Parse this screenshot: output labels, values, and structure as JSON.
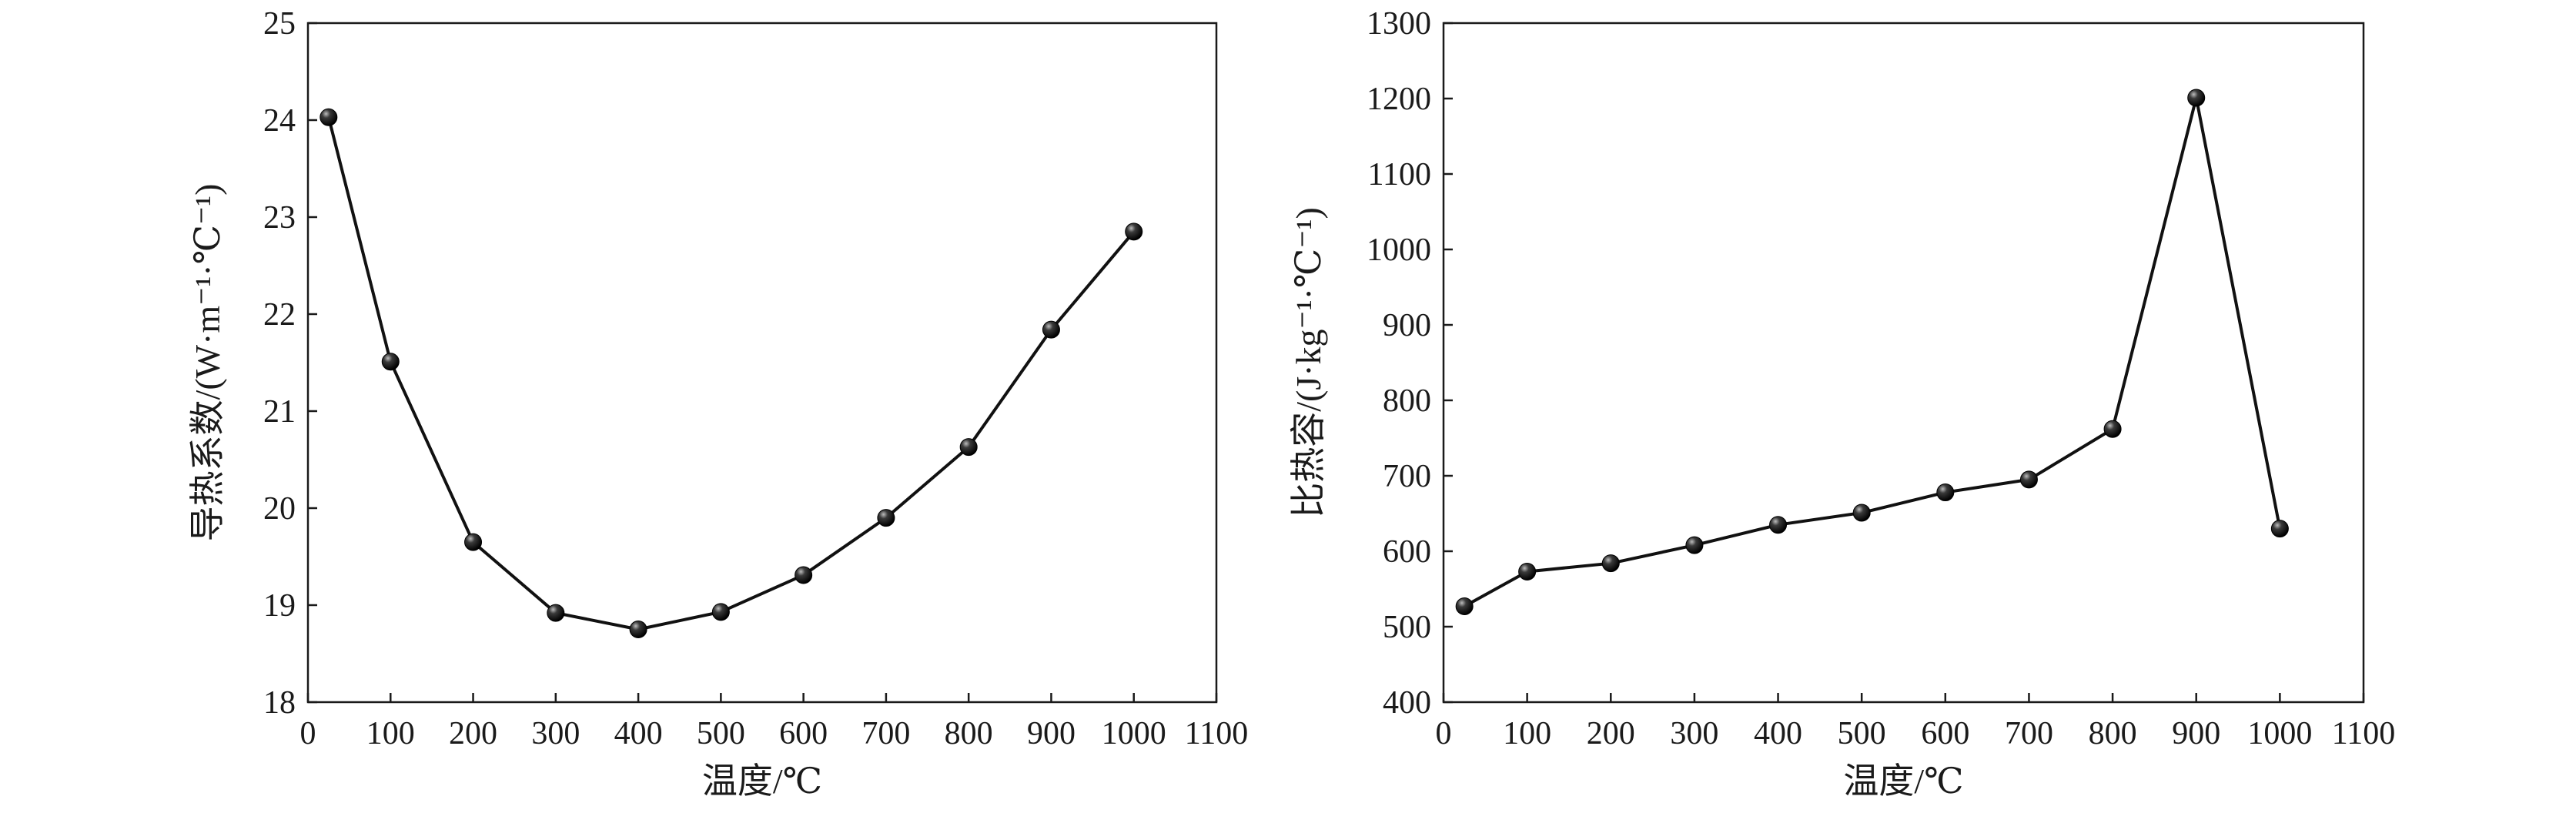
{
  "chart_data": [
    {
      "type": "line",
      "xlabel": "温度/℃",
      "ylabel": "导热系数/(W·m⁻¹·℃⁻¹)",
      "xlim": [
        0,
        1100
      ],
      "ylim": [
        18,
        25
      ],
      "xticks": [
        0,
        100,
        200,
        300,
        400,
        500,
        600,
        700,
        800,
        900,
        1000,
        1100
      ],
      "yticks": [
        18,
        19,
        20,
        21,
        22,
        23,
        24,
        25
      ],
      "grid": false,
      "series": [
        {
          "x": [
            25,
            100,
            200,
            300,
            400,
            500,
            600,
            700,
            800,
            900,
            1000
          ],
          "y": [
            24.03,
            21.51,
            19.65,
            18.92,
            18.75,
            18.93,
            19.31,
            19.9,
            20.63,
            21.84,
            22.85
          ]
        }
      ]
    },
    {
      "type": "line",
      "xlabel": "温度/℃",
      "ylabel": "比热容/(J·kg⁻¹·℃⁻¹)",
      "xlim": [
        0,
        1100
      ],
      "ylim": [
        400,
        1300
      ],
      "xticks": [
        0,
        100,
        200,
        300,
        400,
        500,
        600,
        700,
        800,
        900,
        1000,
        1100
      ],
      "yticks": [
        400,
        500,
        600,
        700,
        800,
        900,
        1000,
        1100,
        1200,
        1300
      ],
      "grid": false,
      "series": [
        {
          "x": [
            25,
            100,
            200,
            300,
            400,
            500,
            600,
            700,
            800,
            900,
            1000
          ],
          "y": [
            527,
            573,
            584,
            608,
            635,
            651,
            678,
            695,
            762,
            1201,
            630
          ]
        }
      ]
    }
  ]
}
